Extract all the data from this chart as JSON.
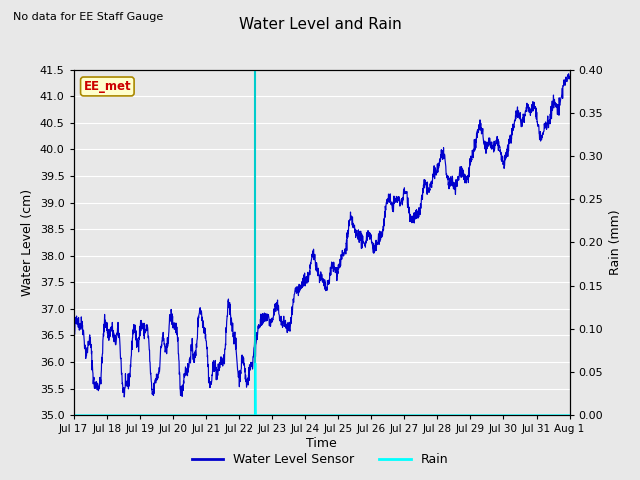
{
  "title": "Water Level and Rain",
  "subtitle": "No data for EE Staff Gauge",
  "xlabel": "Time",
  "ylabel_left": "Water Level (cm)",
  "ylabel_right": "Rain (mm)",
  "ylim_left": [
    35.0,
    41.5
  ],
  "ylim_right": [
    0.0,
    0.4
  ],
  "yticks_left": [
    35.0,
    35.5,
    36.0,
    36.5,
    37.0,
    37.5,
    38.0,
    38.5,
    39.0,
    39.5,
    40.0,
    40.5,
    41.0,
    41.5
  ],
  "yticks_right": [
    0.0,
    0.05,
    0.1,
    0.15,
    0.2,
    0.25,
    0.3,
    0.35,
    0.4
  ],
  "line_color": "#0000CC",
  "rain_color": "#00FFFF",
  "vline_x": 5.5,
  "vline_color": "#00CCCC",
  "box_label": "EE_met",
  "box_facecolor": "#FFFFCC",
  "box_edgecolor": "#AA8800",
  "box_textcolor": "#CC0000",
  "legend_labels": [
    "Water Level Sensor",
    "Rain"
  ],
  "background_color": "#E8E8E8",
  "plot_bg_color": "#E8E8E8",
  "grid_color": "#FFFFFF",
  "xtick_labels": [
    "Jul 17",
    "Jul 18",
    "Jul 19",
    "Jul 20",
    "Jul 21",
    "Jul 22",
    "Jul 23",
    "Jul 24",
    "Jul 25",
    "Jul 26",
    "Jul 27",
    "Jul 28",
    "Jul 29",
    "Jul 30",
    "Jul 31",
    "Aug 1"
  ],
  "seed": 42
}
